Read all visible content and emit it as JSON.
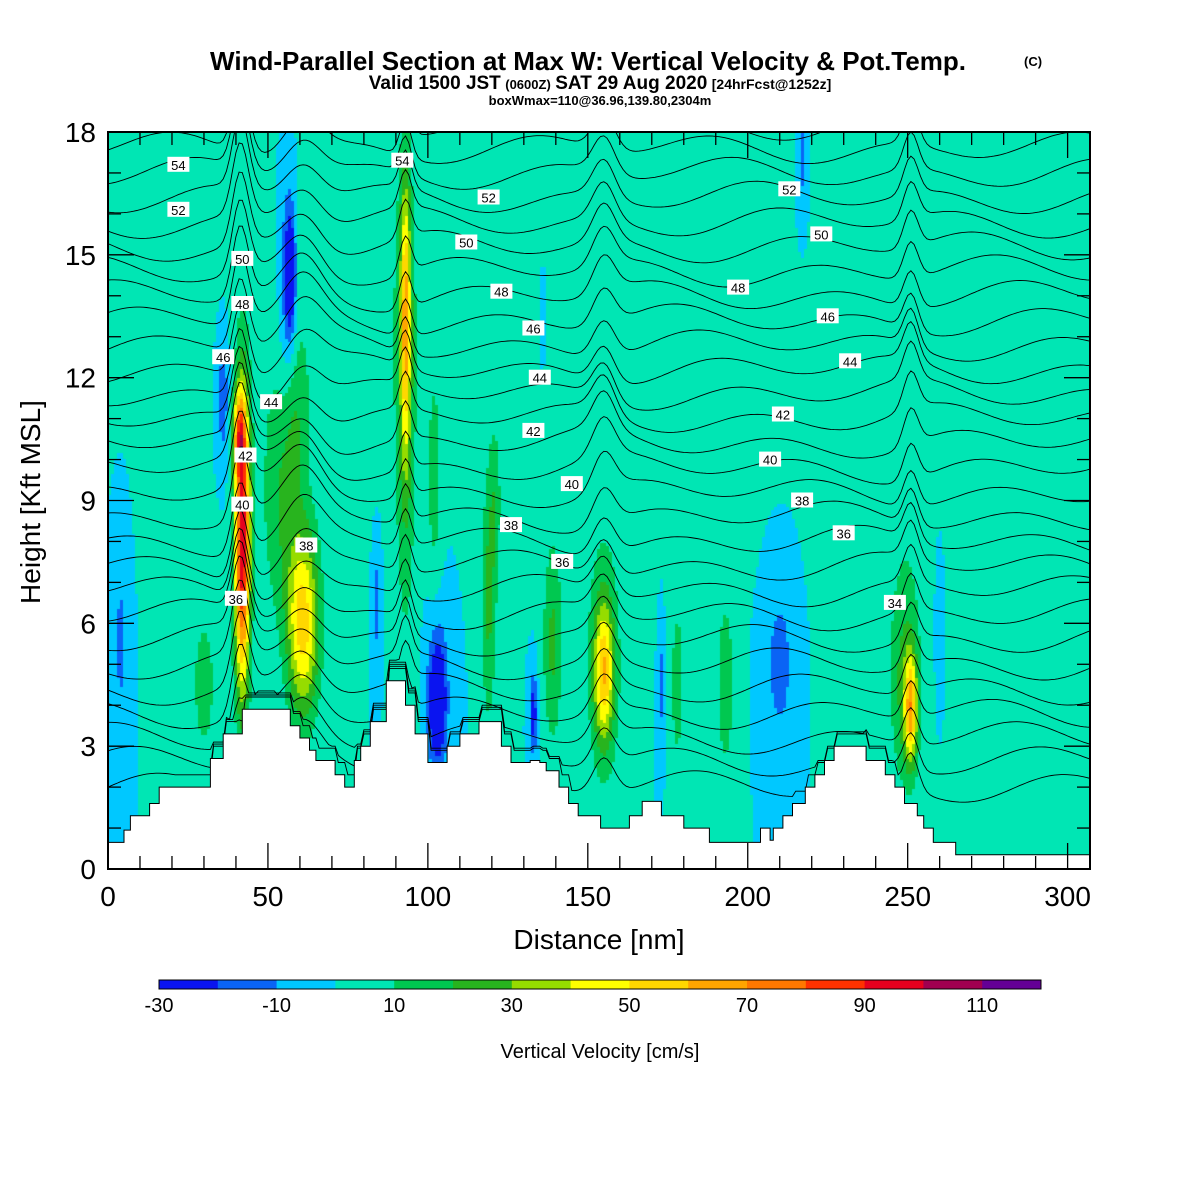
{
  "header": {
    "title": "Wind-Parallel Section at Max W: Vertical Velocity & Pot.Temp.",
    "title_mark": "(C)",
    "valid_prefix": "Valid 1500 JST",
    "valid_utc": "(0600Z)",
    "valid_date": "SAT 29 Aug 2020",
    "valid_fcst": "[24hrFcst@1252z]",
    "box_info": "boxWmax=110@36.96,139.80,2304m"
  },
  "chart_data": {
    "type": "heatmap",
    "xlabel": "Distance [nm]",
    "ylabel": "Height [Kft MSL]",
    "xlim": [
      0,
      307
    ],
    "ylim": [
      0,
      18
    ],
    "x_ticks": [
      "0",
      "50",
      "100",
      "150",
      "200",
      "250",
      "300"
    ],
    "y_ticks": [
      "0",
      "3",
      "6",
      "9",
      "12",
      "15",
      "18"
    ],
    "grid": false,
    "background_w": 0,
    "colorbar": {
      "label": "Vertical Velocity [cm/s]",
      "levels": [
        -30,
        -20,
        -10,
        0,
        10,
        20,
        30,
        40,
        50,
        60,
        70,
        80,
        90,
        100,
        110,
        120
      ],
      "tick_labels": [
        "-30",
        "-10",
        "10",
        "30",
        "50",
        "70",
        "90",
        "110"
      ],
      "colors": [
        "#0a14f0",
        "#0a64f5",
        "#00c8ff",
        "#00e6b4",
        "#00c850",
        "#28b41e",
        "#96dc00",
        "#ffff00",
        "#ffd700",
        "#ffa500",
        "#ff7800",
        "#ff3200",
        "#e6001e",
        "#a00050",
        "#640096"
      ]
    },
    "w_features": [
      {
        "x": 42,
        "z": 8.0,
        "sx": 2.4,
        "sz": 3.6,
        "w": 100
      },
      {
        "x": 41,
        "z": 10.6,
        "sx": 2.0,
        "sz": 1.0,
        "w": 45
      },
      {
        "x": 54,
        "z": 9.0,
        "sx": 6.0,
        "sz": 3.0,
        "w": 18
      },
      {
        "x": 61,
        "z": 6.0,
        "sx": 5.0,
        "sz": 2.3,
        "w": 55
      },
      {
        "x": 58,
        "z": 11.0,
        "sx": 4.0,
        "sz": 2.0,
        "w": 15
      },
      {
        "x": 93,
        "z": 13.5,
        "sx": 1.6,
        "sz": 3.4,
        "w": 50
      },
      {
        "x": 93,
        "z": 11.0,
        "sx": 3.5,
        "sz": 6.0,
        "w": 18
      },
      {
        "x": 102,
        "z": 9.5,
        "sx": 2.3,
        "sz": 2.8,
        "w": 15
      },
      {
        "x": 119,
        "z": 6.5,
        "sx": 2.3,
        "sz": 3.0,
        "w": 22
      },
      {
        "x": 121,
        "z": 9.0,
        "sx": 2.0,
        "sz": 2.0,
        "w": 14
      },
      {
        "x": 139,
        "z": 5.5,
        "sx": 3.0,
        "sz": 2.5,
        "w": 22
      },
      {
        "x": 155,
        "z": 4.8,
        "sx": 3.0,
        "sz": 1.6,
        "w": 42
      },
      {
        "x": 155,
        "z": 5.0,
        "sx": 5.0,
        "sz": 3.0,
        "w": 20
      },
      {
        "x": 178,
        "z": 4.5,
        "sx": 2.5,
        "sz": 2.5,
        "w": 14
      },
      {
        "x": 193,
        "z": 4.5,
        "sx": 3.0,
        "sz": 2.5,
        "w": 16
      },
      {
        "x": 251,
        "z": 3.9,
        "sx": 2.0,
        "sz": 1.3,
        "w": 52
      },
      {
        "x": 249,
        "z": 4.5,
        "sx": 4.5,
        "sz": 2.5,
        "w": 22
      },
      {
        "x": 30,
        "z": 4.5,
        "sx": 5.0,
        "sz": 2.5,
        "w": 13
      },
      {
        "x": 70,
        "z": 14.0,
        "sx": 25.0,
        "sz": 4.0,
        "w": 8
      },
      {
        "x": 160,
        "z": 14.0,
        "sx": 28.0,
        "sz": 5.0,
        "w": 8
      },
      {
        "x": 255,
        "z": 11.0,
        "sx": 18.0,
        "sz": 5.0,
        "w": 9
      },
      {
        "x": 290,
        "z": 7.5,
        "sx": 14.0,
        "sz": 2.0,
        "w": 8
      },
      {
        "x": 57,
        "z": 14.5,
        "sx": 1.6,
        "sz": 1.5,
        "w": -32
      },
      {
        "x": 56,
        "z": 14.0,
        "sx": 3.0,
        "sz": 3.5,
        "w": -18
      },
      {
        "x": 36,
        "z": 11.5,
        "sx": 1.8,
        "sz": 1.5,
        "w": -18
      },
      {
        "x": 4,
        "z": 5.5,
        "sx": 1.6,
        "sz": 1.6,
        "w": -16
      },
      {
        "x": 84,
        "z": 6.5,
        "sx": 1.2,
        "sz": 1.5,
        "w": -14
      },
      {
        "x": 103,
        "z": 4.0,
        "sx": 2.5,
        "sz": 1.3,
        "w": -32
      },
      {
        "x": 103,
        "z": 4.5,
        "sx": 3.5,
        "sz": 2.0,
        "w": -16
      },
      {
        "x": 133,
        "z": 3.8,
        "sx": 1.2,
        "sz": 1.0,
        "w": -28
      },
      {
        "x": 136,
        "z": 13.5,
        "sx": 0.8,
        "sz": 1.2,
        "w": -14
      },
      {
        "x": 173,
        "z": 4.5,
        "sx": 1.0,
        "sz": 1.6,
        "w": -13
      },
      {
        "x": 210,
        "z": 5.0,
        "sx": 4.0,
        "sz": 1.8,
        "w": -16
      },
      {
        "x": 217,
        "z": 17.5,
        "sx": 1.2,
        "sz": 1.2,
        "w": -16
      },
      {
        "x": 260,
        "z": 6.5,
        "sx": 1.5,
        "sz": 2.0,
        "w": -14
      }
    ],
    "theta_contours": {
      "count": 30,
      "base_z": 2.0,
      "spacing_z": 0.6
    },
    "contour_labels": [
      {
        "text": "54",
        "x": 22,
        "z": 17.2
      },
      {
        "text": "52",
        "x": 22,
        "z": 16.1
      },
      {
        "text": "50",
        "x": 42,
        "z": 14.9
      },
      {
        "text": "48",
        "x": 42,
        "z": 13.8
      },
      {
        "text": "46",
        "x": 36,
        "z": 12.5
      },
      {
        "text": "44",
        "x": 51,
        "z": 11.4
      },
      {
        "text": "42",
        "x": 43,
        "z": 10.1
      },
      {
        "text": "40",
        "x": 42,
        "z": 8.9
      },
      {
        "text": "38",
        "x": 62,
        "z": 7.9
      },
      {
        "text": "36",
        "x": 40,
        "z": 6.6
      },
      {
        "text": "54",
        "x": 92,
        "z": 17.3
      },
      {
        "text": "52",
        "x": 119,
        "z": 16.4
      },
      {
        "text": "50",
        "x": 112,
        "z": 15.3
      },
      {
        "text": "48",
        "x": 123,
        "z": 14.1
      },
      {
        "text": "46",
        "x": 133,
        "z": 13.2
      },
      {
        "text": "44",
        "x": 135,
        "z": 12.0
      },
      {
        "text": "42",
        "x": 133,
        "z": 10.7
      },
      {
        "text": "40",
        "x": 145,
        "z": 9.4
      },
      {
        "text": "38",
        "x": 126,
        "z": 8.4
      },
      {
        "text": "36",
        "x": 142,
        "z": 7.5
      },
      {
        "text": "52",
        "x": 213,
        "z": 16.6
      },
      {
        "text": "50",
        "x": 223,
        "z": 15.5
      },
      {
        "text": "48",
        "x": 197,
        "z": 14.2
      },
      {
        "text": "46",
        "x": 225,
        "z": 13.5
      },
      {
        "text": "44",
        "x": 232,
        "z": 12.4
      },
      {
        "text": "42",
        "x": 211,
        "z": 11.1
      },
      {
        "text": "40",
        "x": 207,
        "z": 10.0
      },
      {
        "text": "38",
        "x": 217,
        "z": 9.0
      },
      {
        "text": "36",
        "x": 230,
        "z": 8.2
      },
      {
        "text": "34",
        "x": 246,
        "z": 6.5
      }
    ],
    "terrain": [
      [
        0,
        0.65
      ],
      [
        5,
        0.65
      ],
      [
        5,
        0.95
      ],
      [
        7,
        0.95
      ],
      [
        7,
        1.3
      ],
      [
        13,
        1.3
      ],
      [
        13,
        1.6
      ],
      [
        16,
        1.6
      ],
      [
        16,
        2.0
      ],
      [
        32,
        2.0
      ],
      [
        32,
        2.7
      ],
      [
        36,
        2.7
      ],
      [
        36,
        3.3
      ],
      [
        42,
        3.3
      ],
      [
        42,
        3.9
      ],
      [
        57,
        3.9
      ],
      [
        57,
        3.5
      ],
      [
        60,
        3.5
      ],
      [
        60,
        3.2
      ],
      [
        63,
        3.2
      ],
      [
        63,
        2.9
      ],
      [
        65,
        2.9
      ],
      [
        65,
        2.65
      ],
      [
        71,
        2.65
      ],
      [
        71,
        2.3
      ],
      [
        74,
        2.3
      ],
      [
        74,
        2.0
      ],
      [
        77,
        2.0
      ],
      [
        77,
        2.65
      ],
      [
        79,
        2.65
      ],
      [
        79,
        3.0
      ],
      [
        82,
        3.0
      ],
      [
        82,
        3.6
      ],
      [
        87,
        3.6
      ],
      [
        87,
        4.6
      ],
      [
        93,
        4.6
      ],
      [
        93,
        4.0
      ],
      [
        96,
        4.0
      ],
      [
        96,
        3.3
      ],
      [
        100,
        3.3
      ],
      [
        100,
        2.6
      ],
      [
        106,
        2.6
      ],
      [
        106,
        3.0
      ],
      [
        110,
        3.0
      ],
      [
        110,
        3.3
      ],
      [
        116,
        3.3
      ],
      [
        116,
        3.6
      ],
      [
        123,
        3.6
      ],
      [
        123,
        3.0
      ],
      [
        126,
        3.0
      ],
      [
        126,
        2.6
      ],
      [
        132,
        2.6
      ],
      [
        132,
        2.65
      ],
      [
        135,
        2.65
      ],
      [
        135,
        2.6
      ],
      [
        137,
        2.6
      ],
      [
        137,
        2.4
      ],
      [
        141,
        2.4
      ],
      [
        141,
        2.0
      ],
      [
        144,
        2.0
      ],
      [
        144,
        1.6
      ],
      [
        147,
        1.6
      ],
      [
        147,
        1.3
      ],
      [
        154,
        1.3
      ],
      [
        154,
        1.0
      ],
      [
        163,
        1.0
      ],
      [
        163,
        1.3
      ],
      [
        167,
        1.3
      ],
      [
        167,
        1.65
      ],
      [
        173,
        1.65
      ],
      [
        173,
        1.3
      ],
      [
        180,
        1.3
      ],
      [
        180,
        1.0
      ],
      [
        188,
        1.0
      ],
      [
        188,
        0.65
      ],
      [
        204,
        0.65
      ],
      [
        204,
        1.0
      ],
      [
        207,
        1.0
      ],
      [
        207,
        0.7
      ],
      [
        208,
        0.7
      ],
      [
        208,
        1.0
      ],
      [
        211,
        1.0
      ],
      [
        211,
        1.3
      ],
      [
        214,
        1.3
      ],
      [
        214,
        1.6
      ],
      [
        218,
        1.6
      ],
      [
        218,
        2.0
      ],
      [
        221,
        2.0
      ],
      [
        221,
        2.3
      ],
      [
        224,
        2.3
      ],
      [
        224,
        2.65
      ],
      [
        227,
        2.65
      ],
      [
        227,
        3.0
      ],
      [
        237,
        3.0
      ],
      [
        237,
        2.65
      ],
      [
        243,
        2.65
      ],
      [
        243,
        2.3
      ],
      [
        246,
        2.3
      ],
      [
        246,
        2.0
      ],
      [
        249,
        2.0
      ],
      [
        249,
        1.6
      ],
      [
        253,
        1.6
      ],
      [
        253,
        1.3
      ],
      [
        255,
        1.3
      ],
      [
        255,
        1.0
      ],
      [
        258,
        1.0
      ],
      [
        258,
        0.65
      ],
      [
        265,
        0.65
      ],
      [
        265,
        0.35
      ],
      [
        307,
        0.35
      ]
    ]
  }
}
